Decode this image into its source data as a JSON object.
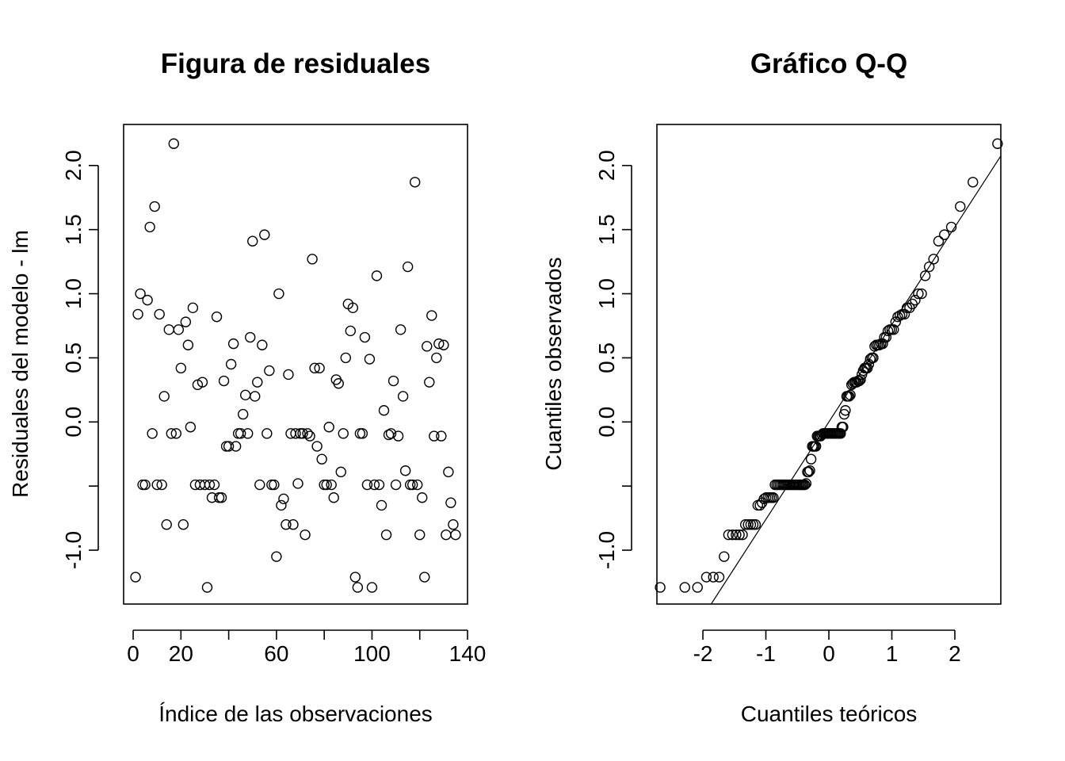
{
  "chart_data": [
    {
      "type": "scatter",
      "title": "Figura de residuales",
      "xlabel": "Índice de las observaciones",
      "ylabel": "Residuales del modelo - lm",
      "xlim": [
        -4,
        140
      ],
      "ylim": [
        -1.42,
        2.32
      ],
      "xticks": [
        0,
        20,
        40,
        60,
        80,
        100,
        120,
        140
      ],
      "xtick_labels": [
        "0",
        "20",
        "",
        "60",
        "",
        "100",
        "",
        "140"
      ],
      "yticks": [
        -1.0,
        -0.5,
        0.0,
        0.5,
        1.0,
        1.5,
        2.0
      ],
      "ytick_labels": [
        "-1.0",
        "",
        "0.0",
        "0.5",
        "1.0",
        "1.5",
        "2.0"
      ],
      "grid": false,
      "x": [
        1,
        2,
        3,
        4,
        5,
        6,
        7,
        8,
        9,
        10,
        11,
        12,
        13,
        14,
        15,
        16,
        17,
        18,
        19,
        20,
        21,
        22,
        23,
        24,
        25,
        26,
        27,
        28,
        29,
        30,
        31,
        32,
        33,
        34,
        35,
        36,
        37,
        38,
        39,
        40,
        41,
        42,
        43,
        44,
        45,
        46,
        47,
        48,
        49,
        50,
        51,
        52,
        53,
        54,
        55,
        56,
        57,
        58,
        59,
        60,
        61,
        62,
        63,
        64,
        65,
        66,
        67,
        68,
        69,
        70,
        71,
        72,
        73,
        74,
        75,
        76,
        77,
        78,
        79,
        80,
        81,
        82,
        83,
        84,
        85,
        86,
        87,
        88,
        89,
        90,
        91,
        92,
        93,
        94,
        95,
        96,
        97,
        98,
        99,
        100,
        101,
        102,
        103,
        104,
        105,
        106,
        107,
        108,
        109,
        110,
        111,
        112,
        113,
        114,
        115,
        116,
        117,
        118,
        119,
        120,
        121,
        122,
        123,
        124,
        125,
        126,
        127,
        128,
        129,
        130,
        131,
        132,
        133,
        134,
        135
      ],
      "y": [
        -1.21,
        0.84,
        1.0,
        -0.49,
        -0.49,
        0.95,
        1.52,
        -0.09,
        1.68,
        -0.49,
        0.84,
        -0.49,
        0.2,
        -0.8,
        0.72,
        -0.09,
        2.17,
        -0.09,
        0.72,
        0.42,
        -0.8,
        0.78,
        0.6,
        -0.04,
        0.89,
        -0.49,
        0.29,
        -0.49,
        0.31,
        -0.49,
        -1.29,
        -0.49,
        -0.59,
        -0.49,
        0.82,
        -0.59,
        -0.59,
        0.32,
        -0.19,
        -0.19,
        0.45,
        0.61,
        -0.19,
        -0.09,
        -0.09,
        0.06,
        0.21,
        -0.09,
        0.66,
        1.41,
        0.2,
        0.31,
        -0.49,
        0.6,
        1.46,
        -0.09,
        0.4,
        -0.49,
        -0.49,
        -1.05,
        1.0,
        -0.65,
        -0.6,
        -0.8,
        0.37,
        -0.09,
        -0.8,
        -0.09,
        -0.48,
        -0.09,
        -0.09,
        -0.88,
        -0.09,
        -0.11,
        1.27,
        0.42,
        -0.19,
        0.42,
        -0.29,
        -0.49,
        -0.49,
        -0.04,
        -0.49,
        -0.59,
        0.33,
        0.3,
        -0.39,
        -0.09,
        0.5,
        0.92,
        0.71,
        0.89,
        -1.21,
        -1.29,
        -0.09,
        -0.09,
        0.66,
        -0.49,
        0.49,
        -1.29,
        -0.49,
        1.14,
        -0.49,
        -0.65,
        0.09,
        -0.88,
        -0.1,
        -0.09,
        0.32,
        -0.49,
        -0.11,
        0.72,
        0.2,
        -0.38,
        1.21,
        -0.49,
        -0.49,
        1.87,
        -0.49,
        -0.88,
        -0.59,
        -1.21,
        0.59,
        0.31,
        0.83,
        -0.11,
        0.5,
        0.61,
        -0.11,
        0.6,
        -0.88,
        -0.39,
        -0.63,
        -0.8,
        -0.88
      ]
    },
    {
      "type": "scatter",
      "title": "Gráfico Q-Q",
      "xlabel": "Cuantiles teóricos",
      "ylabel": "Cuantiles observados",
      "xlim": [
        -2.73,
        2.73
      ],
      "ylim": [
        -1.42,
        2.32
      ],
      "xticks": [
        -2,
        -1,
        0,
        1,
        2
      ],
      "xtick_labels": [
        "-2",
        "-1",
        "0",
        "1",
        "2"
      ],
      "yticks": [
        -1.0,
        -0.5,
        0.0,
        0.5,
        1.0,
        1.5,
        2.0
      ],
      "ytick_labels": [
        "-1.0",
        "",
        "0.0",
        "0.5",
        "1.0",
        "1.5",
        "2.0"
      ],
      "grid": false,
      "reference_line": {
        "intercept": 0.0,
        "slope": 0.76
      }
    }
  ]
}
